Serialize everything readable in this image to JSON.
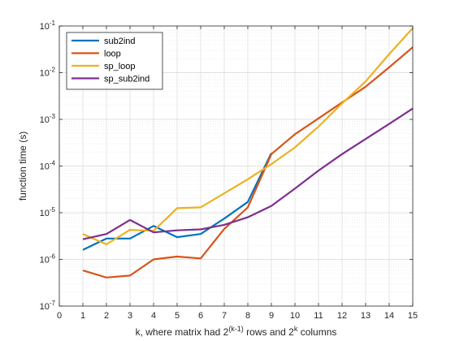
{
  "chart_data": {
    "type": "line",
    "title": "",
    "xlabel_parts": [
      "k, where matrix had 2",
      "(k-1)",
      " rows and 2",
      "k",
      " columns"
    ],
    "ylabel": "function time (s)",
    "xlim": [
      0,
      15
    ],
    "xticks": [
      0,
      1,
      2,
      3,
      4,
      5,
      6,
      7,
      8,
      9,
      10,
      11,
      12,
      13,
      14,
      15
    ],
    "yscale": "log",
    "ylim": [
      1e-07,
      0.1
    ],
    "yticks": [
      {
        "value": 1e-07,
        "base": "10",
        "exp": "-7"
      },
      {
        "value": 1e-06,
        "base": "10",
        "exp": "-6"
      },
      {
        "value": 1e-05,
        "base": "10",
        "exp": "-5"
      },
      {
        "value": 0.0001,
        "base": "10",
        "exp": "-4"
      },
      {
        "value": 0.001,
        "base": "10",
        "exp": "-3"
      },
      {
        "value": 0.01,
        "base": "10",
        "exp": "-2"
      },
      {
        "value": 0.1,
        "base": "10",
        "exp": "-1"
      }
    ],
    "grid": true,
    "minor_grid": true,
    "legend_position": "top-left",
    "series": [
      {
        "name": "sub2ind",
        "color": "#0072BD",
        "x": [
          1,
          2,
          3,
          4,
          5,
          6,
          7,
          8,
          9
        ],
        "y": [
          1.6e-06,
          2.8e-06,
          2.8e-06,
          5.2e-06,
          3e-06,
          3.5e-06,
          7.5e-06,
          1.7e-05,
          0.00019
        ]
      },
      {
        "name": "loop",
        "color": "#D95319",
        "x": [
          1,
          2,
          3,
          4,
          5,
          6,
          7,
          8,
          9,
          10,
          11,
          12,
          13,
          14,
          15
        ],
        "y": [
          5.8e-07,
          4.1e-07,
          4.5e-07,
          1e-06,
          1.15e-06,
          1.05e-06,
          4.5e-06,
          1.3e-05,
          0.00018,
          0.00048,
          0.00105,
          0.0023,
          0.005,
          0.013,
          0.035
        ]
      },
      {
        "name": "sp_loop",
        "color": "#EDB120",
        "x": [
          1,
          2,
          3,
          4,
          5,
          6,
          7,
          8,
          9,
          10,
          11,
          12,
          13,
          14,
          15
        ],
        "y": [
          3.5e-06,
          2.1e-06,
          4.3e-06,
          4.1e-06,
          1.25e-05,
          1.3e-05,
          2.6e-05,
          5.2e-05,
          0.00011,
          0.00025,
          0.0007,
          0.0022,
          0.0065,
          0.025,
          0.09
        ]
      },
      {
        "name": "sp_sub2ind",
        "color": "#7E2F8E",
        "x": [
          1,
          2,
          3,
          4,
          5,
          6,
          7,
          8,
          9,
          10,
          11,
          12,
          13,
          14,
          15
        ],
        "y": [
          2.7e-06,
          3.5e-06,
          7e-06,
          3.8e-06,
          4.2e-06,
          4.4e-06,
          5.5e-06,
          8e-06,
          1.4e-05,
          3.3e-05,
          8e-05,
          0.00018,
          0.00038,
          0.0008,
          0.0017
        ]
      }
    ]
  }
}
